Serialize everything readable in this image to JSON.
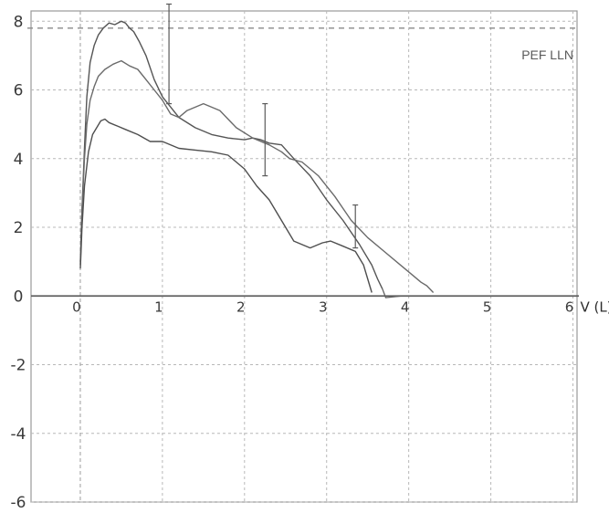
{
  "chart_data": {
    "type": "line",
    "title": "",
    "xlabel": "V (L)",
    "ylabel": "",
    "xlim": [
      -0.6,
      6.05
    ],
    "ylim": [
      -6,
      8.3
    ],
    "x_ticks": [
      0,
      1,
      2,
      3,
      4,
      5,
      6
    ],
    "x_tick_labels": [
      "0",
      "1",
      "2",
      "3",
      "4",
      "5",
      "6"
    ],
    "y_ticks": [
      8,
      6,
      4,
      2,
      0,
      -2,
      -4,
      -6
    ],
    "y_tick_labels": [
      "8",
      "6",
      "4",
      "2",
      "0",
      "-2",
      "-4",
      "-6"
    ],
    "grid": true,
    "reference_line": {
      "label": "PEF LLN",
      "y": 7.8
    },
    "series": [
      {
        "x": [
          0.0,
          0.02,
          0.05,
          0.08,
          0.12,
          0.17,
          0.22,
          0.28,
          0.35,
          0.42,
          0.5,
          0.55,
          0.6,
          0.65,
          0.72,
          0.8,
          0.9,
          1.0,
          1.1,
          1.2,
          1.4,
          1.6,
          1.8,
          2.0,
          2.1,
          2.2,
          2.3,
          2.45,
          2.6,
          2.8,
          3.0,
          3.2,
          3.4,
          3.55,
          3.62,
          3.68
        ],
        "y": [
          0.9,
          2.5,
          4.3,
          5.8,
          6.8,
          7.3,
          7.6,
          7.8,
          7.95,
          7.9,
          8.0,
          7.95,
          7.8,
          7.7,
          7.4,
          7.0,
          6.3,
          5.8,
          5.5,
          5.2,
          4.9,
          4.7,
          4.6,
          4.55,
          4.6,
          4.55,
          4.45,
          4.4,
          4.0,
          3.5,
          2.8,
          2.2,
          1.5,
          0.9,
          0.5,
          0.2
        ]
      },
      {
        "x": [
          0.0,
          0.02,
          0.05,
          0.08,
          0.12,
          0.17,
          0.22,
          0.3,
          0.4,
          0.5,
          0.6,
          0.7,
          0.8,
          0.9,
          1.0,
          1.1,
          1.2,
          1.3,
          1.5,
          1.7,
          1.9,
          2.1,
          2.3,
          2.45,
          2.55,
          2.7,
          2.9,
          3.1,
          3.3,
          3.5,
          3.7,
          3.9,
          4.05,
          4.15,
          4.22,
          4.3
        ],
        "y": [
          1.0,
          2.5,
          4.0,
          5.0,
          5.7,
          6.1,
          6.4,
          6.6,
          6.75,
          6.85,
          6.7,
          6.6,
          6.3,
          6.0,
          5.7,
          5.3,
          5.2,
          5.4,
          5.6,
          5.4,
          4.9,
          4.6,
          4.4,
          4.2,
          4.0,
          3.9,
          3.5,
          2.9,
          2.2,
          1.7,
          1.3,
          0.9,
          0.6,
          0.4,
          0.3,
          0.1
        ]
      },
      {
        "x": [
          0.0,
          0.02,
          0.05,
          0.1,
          0.15,
          0.2,
          0.25,
          0.3,
          0.35,
          0.45,
          0.55,
          0.7,
          0.85,
          1.0,
          1.2,
          1.4,
          1.6,
          1.8,
          2.0,
          2.15,
          2.3,
          2.45,
          2.6,
          2.8,
          2.95,
          3.05,
          3.2,
          3.35,
          3.45,
          3.5,
          3.55
        ],
        "y": [
          0.8,
          2.0,
          3.2,
          4.2,
          4.7,
          4.9,
          5.1,
          5.15,
          5.05,
          4.95,
          4.85,
          4.7,
          4.5,
          4.5,
          4.3,
          4.25,
          4.2,
          4.1,
          3.7,
          3.2,
          2.8,
          2.2,
          1.6,
          1.4,
          1.55,
          1.6,
          1.45,
          1.3,
          0.9,
          0.5,
          0.1
        ]
      }
    ],
    "error_bars": [
      {
        "x": 1.08,
        "y_low": 5.6,
        "y_high": 8.5
      },
      {
        "x": 2.25,
        "y_low": 3.5,
        "y_high": 5.6
      },
      {
        "x": 3.35,
        "y_low": 1.4,
        "y_high": 2.65
      }
    ],
    "tail_segment": {
      "x": [
        3.68,
        3.72,
        3.9
      ],
      "y": [
        0.2,
        -0.05,
        0.0
      ]
    }
  }
}
